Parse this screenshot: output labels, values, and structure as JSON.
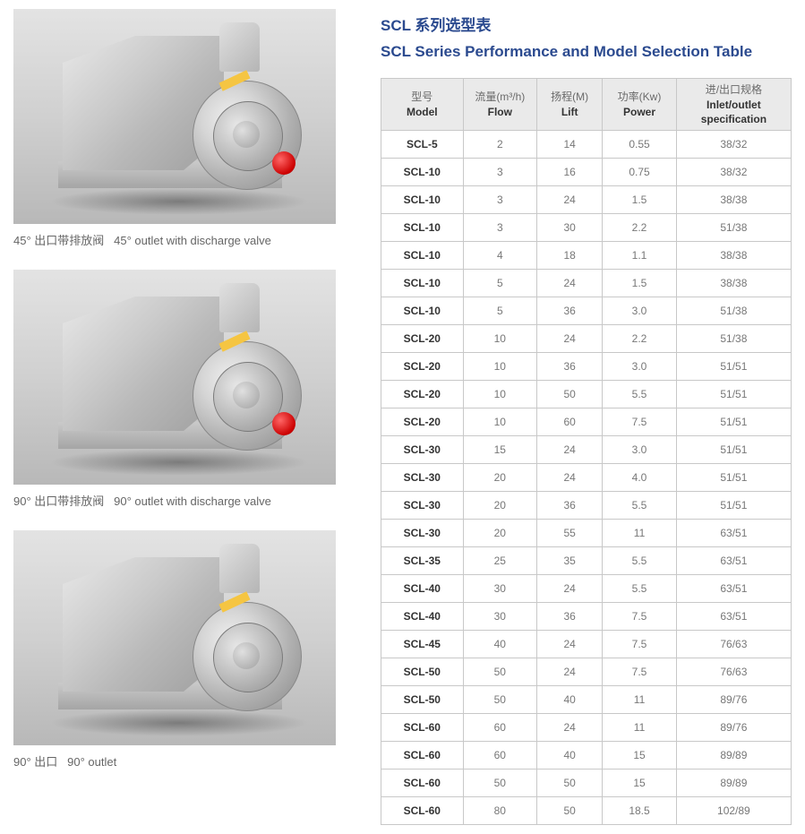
{
  "title_cn": "SCL 系列选型表",
  "title_en": "SCL Series Performance and Model Selection Table",
  "figures": [
    {
      "caption_cn": "45° 出口带排放阀",
      "caption_en": "45° outlet with discharge valve",
      "has_valve": true
    },
    {
      "caption_cn": "90° 出口带排放阀",
      "caption_en": "90° outlet with discharge valve",
      "has_valve": true
    },
    {
      "caption_cn": "90° 出口",
      "caption_en": "90° outlet",
      "has_valve": false
    }
  ],
  "table": {
    "headers": [
      {
        "cn": "型号",
        "en": "Model"
      },
      {
        "cn": "流量(m³/h)",
        "en": "Flow"
      },
      {
        "cn": "扬程(M)",
        "en": "Lift"
      },
      {
        "cn": "功率(Kw)",
        "en": "Power"
      },
      {
        "cn": "进/出口规格",
        "en": "Inlet/outlet specification"
      }
    ],
    "rows": [
      [
        "SCL-5",
        "2",
        "14",
        "0.55",
        "38/32"
      ],
      [
        "SCL-10",
        "3",
        "16",
        "0.75",
        "38/32"
      ],
      [
        "SCL-10",
        "3",
        "24",
        "1.5",
        "38/38"
      ],
      [
        "SCL-10",
        "3",
        "30",
        "2.2",
        "51/38"
      ],
      [
        "SCL-10",
        "4",
        "18",
        "1.1",
        "38/38"
      ],
      [
        "SCL-10",
        "5",
        "24",
        "1.5",
        "38/38"
      ],
      [
        "SCL-10",
        "5",
        "36",
        "3.0",
        "51/38"
      ],
      [
        "SCL-20",
        "10",
        "24",
        "2.2",
        "51/38"
      ],
      [
        "SCL-20",
        "10",
        "36",
        "3.0",
        "51/51"
      ],
      [
        "SCL-20",
        "10",
        "50",
        "5.5",
        "51/51"
      ],
      [
        "SCL-20",
        "10",
        "60",
        "7.5",
        "51/51"
      ],
      [
        "SCL-30",
        "15",
        "24",
        "3.0",
        "51/51"
      ],
      [
        "SCL-30",
        "20",
        "24",
        "4.0",
        "51/51"
      ],
      [
        "SCL-30",
        "20",
        "36",
        "5.5",
        "51/51"
      ],
      [
        "SCL-30",
        "20",
        "55",
        "11",
        "63/51"
      ],
      [
        "SCL-35",
        "25",
        "35",
        "5.5",
        "63/51"
      ],
      [
        "SCL-40",
        "30",
        "24",
        "5.5",
        "63/51"
      ],
      [
        "SCL-40",
        "30",
        "36",
        "7.5",
        "63/51"
      ],
      [
        "SCL-45",
        "40",
        "24",
        "7.5",
        "76/63"
      ],
      [
        "SCL-50",
        "50",
        "24",
        "7.5",
        "76/63"
      ],
      [
        "SCL-50",
        "50",
        "40",
        "11",
        "89/76"
      ],
      [
        "SCL-60",
        "60",
        "24",
        "11",
        "89/76"
      ],
      [
        "SCL-60",
        "60",
        "40",
        "15",
        "89/89"
      ],
      [
        "SCL-60",
        "50",
        "50",
        "15",
        "89/89"
      ],
      [
        "SCL-60",
        "80",
        "50",
        "18.5",
        "102/89"
      ]
    ],
    "col_widths": [
      "20%",
      "18%",
      "16%",
      "18%",
      "28%"
    ]
  },
  "style": {
    "title_color": "#2b4a8f",
    "border_color": "#c8c8c8",
    "header_bg": "#eaeaea",
    "cell_text": "#777777"
  }
}
